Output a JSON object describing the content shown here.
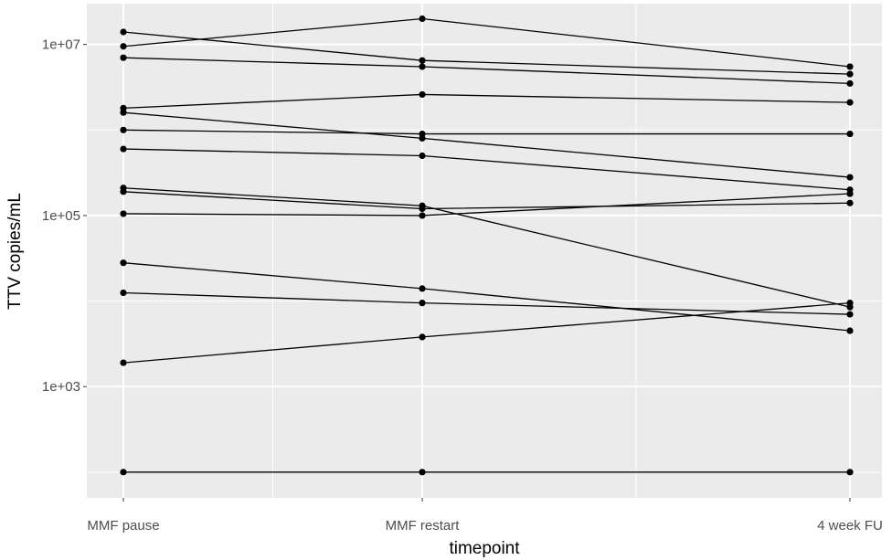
{
  "chart_data": {
    "type": "line",
    "xlabel": "timepoint",
    "ylabel": "TTV copies/mL",
    "x_categories": [
      "MMF pause",
      "MMF restart",
      "4 week FU"
    ],
    "y_scale": "log10",
    "ylim": [
      50,
      30000000
    ],
    "y_ticks": [
      1000,
      100000,
      10000000
    ],
    "y_tick_labels": [
      "1e+03",
      "1e+05",
      "1e+07"
    ],
    "grid": true,
    "panel_color": "#ebebeb",
    "grid_color": "#ffffff",
    "line_color": "#000000",
    "series": [
      {
        "values": [
          14000000,
          6500000,
          4500000
        ]
      },
      {
        "values": [
          9500000,
          20000000,
          5500000
        ]
      },
      {
        "values": [
          7000000,
          5500000,
          3500000
        ]
      },
      {
        "values": [
          1800000,
          2600000,
          2100000
        ]
      },
      {
        "values": [
          1600000,
          800000,
          280000
        ]
      },
      {
        "values": [
          1000000,
          900000,
          900000
        ]
      },
      {
        "values": [
          600000,
          500000,
          200000
        ]
      },
      {
        "values": [
          210000,
          130000,
          8500
        ]
      },
      {
        "values": [
          190000,
          120000,
          140000
        ]
      },
      {
        "values": [
          105000,
          100000,
          180000
        ]
      },
      {
        "values": [
          28000,
          14000,
          4500
        ]
      },
      {
        "values": [
          12500,
          9500,
          7000
        ]
      },
      {
        "values": [
          1900,
          3800,
          9500
        ]
      },
      {
        "values": [
          100,
          100,
          100
        ]
      }
    ]
  }
}
